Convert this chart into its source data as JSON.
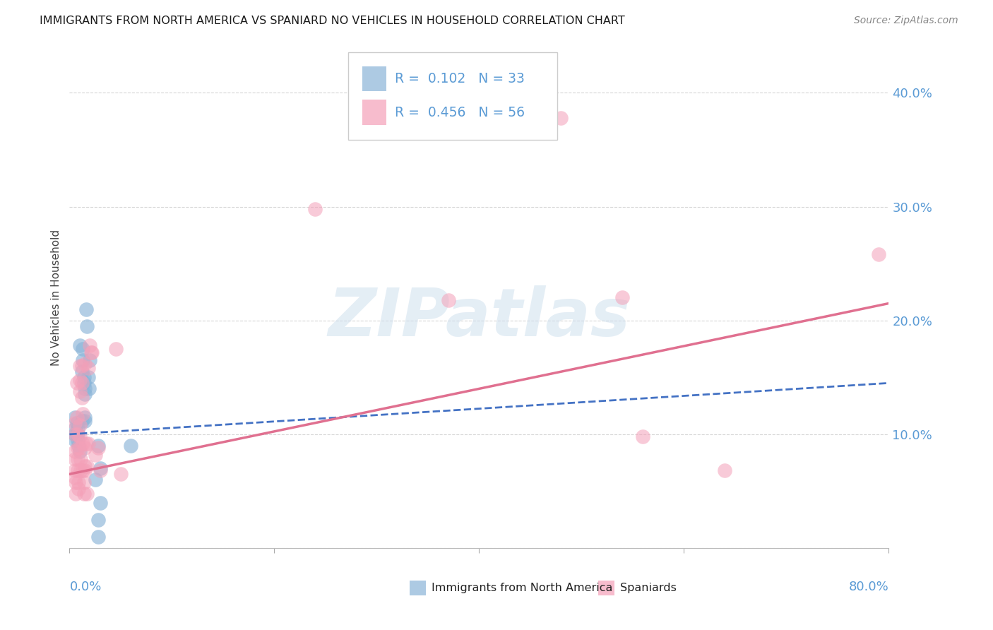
{
  "title": "IMMIGRANTS FROM NORTH AMERICA VS SPANIARD NO VEHICLES IN HOUSEHOLD CORRELATION CHART",
  "source": "Source: ZipAtlas.com",
  "ylabel": "No Vehicles in Household",
  "xlim": [
    0.0,
    0.8
  ],
  "ylim": [
    0.0,
    0.44
  ],
  "yticks": [
    0.0,
    0.1,
    0.2,
    0.3,
    0.4
  ],
  "ytick_labels": [
    "",
    "10.0%",
    "20.0%",
    "30.0%",
    "40.0%"
  ],
  "xticks": [
    0.0,
    0.2,
    0.4,
    0.6,
    0.8
  ],
  "blue_color": "#8ab4d8",
  "pink_color": "#f4a0b8",
  "blue_line_color": "#4472c4",
  "pink_line_color": "#e07090",
  "axis_color": "#5b9bd5",
  "watermark": "ZIPatlas",
  "blue_label": "R =  0.102   N = 33",
  "pink_label": "R =  0.456   N = 56",
  "blue_scatter": [
    [
      0.005,
      0.115
    ],
    [
      0.005,
      0.105
    ],
    [
      0.005,
      0.1
    ],
    [
      0.005,
      0.095
    ],
    [
      0.007,
      0.11
    ],
    [
      0.008,
      0.105
    ],
    [
      0.008,
      0.1
    ],
    [
      0.008,
      0.095
    ],
    [
      0.009,
      0.09
    ],
    [
      0.01,
      0.085
    ],
    [
      0.01,
      0.178
    ],
    [
      0.012,
      0.155
    ],
    [
      0.012,
      0.112
    ],
    [
      0.013,
      0.175
    ],
    [
      0.013,
      0.165
    ],
    [
      0.014,
      0.15
    ],
    [
      0.014,
      0.145
    ],
    [
      0.015,
      0.14
    ],
    [
      0.015,
      0.135
    ],
    [
      0.015,
      0.115
    ],
    [
      0.015,
      0.112
    ],
    [
      0.016,
      0.21
    ],
    [
      0.017,
      0.195
    ],
    [
      0.018,
      0.15
    ],
    [
      0.019,
      0.14
    ],
    [
      0.02,
      0.165
    ],
    [
      0.025,
      0.06
    ],
    [
      0.028,
      0.09
    ],
    [
      0.03,
      0.07
    ],
    [
      0.06,
      0.09
    ],
    [
      0.028,
      0.01
    ],
    [
      0.03,
      0.04
    ],
    [
      0.028,
      0.025
    ]
  ],
  "pink_scatter": [
    [
      0.005,
      0.11
    ],
    [
      0.005,
      0.1
    ],
    [
      0.005,
      0.085
    ],
    [
      0.005,
      0.078
    ],
    [
      0.005,
      0.068
    ],
    [
      0.005,
      0.062
    ],
    [
      0.006,
      0.058
    ],
    [
      0.006,
      0.048
    ],
    [
      0.007,
      0.145
    ],
    [
      0.007,
      0.115
    ],
    [
      0.008,
      0.1
    ],
    [
      0.008,
      0.088
    ],
    [
      0.008,
      0.078
    ],
    [
      0.008,
      0.068
    ],
    [
      0.009,
      0.058
    ],
    [
      0.009,
      0.052
    ],
    [
      0.01,
      0.16
    ],
    [
      0.01,
      0.148
    ],
    [
      0.01,
      0.138
    ],
    [
      0.01,
      0.108
    ],
    [
      0.01,
      0.098
    ],
    [
      0.01,
      0.088
    ],
    [
      0.011,
      0.078
    ],
    [
      0.011,
      0.068
    ],
    [
      0.012,
      0.16
    ],
    [
      0.012,
      0.145
    ],
    [
      0.012,
      0.132
    ],
    [
      0.013,
      0.118
    ],
    [
      0.013,
      0.092
    ],
    [
      0.013,
      0.068
    ],
    [
      0.014,
      0.058
    ],
    [
      0.014,
      0.048
    ],
    [
      0.015,
      0.162
    ],
    [
      0.015,
      0.088
    ],
    [
      0.015,
      0.072
    ],
    [
      0.015,
      0.068
    ],
    [
      0.016,
      0.092
    ],
    [
      0.017,
      0.072
    ],
    [
      0.017,
      0.048
    ],
    [
      0.018,
      0.158
    ],
    [
      0.018,
      0.092
    ],
    [
      0.02,
      0.178
    ],
    [
      0.021,
      0.172
    ],
    [
      0.022,
      0.172
    ],
    [
      0.025,
      0.082
    ],
    [
      0.028,
      0.088
    ],
    [
      0.03,
      0.068
    ],
    [
      0.045,
      0.175
    ],
    [
      0.05,
      0.065
    ],
    [
      0.24,
      0.298
    ],
    [
      0.37,
      0.218
    ],
    [
      0.48,
      0.378
    ],
    [
      0.54,
      0.22
    ],
    [
      0.56,
      0.098
    ],
    [
      0.64,
      0.068
    ],
    [
      0.79,
      0.258
    ]
  ],
  "background_color": "#ffffff",
  "grid_color": "#d5d5d5"
}
